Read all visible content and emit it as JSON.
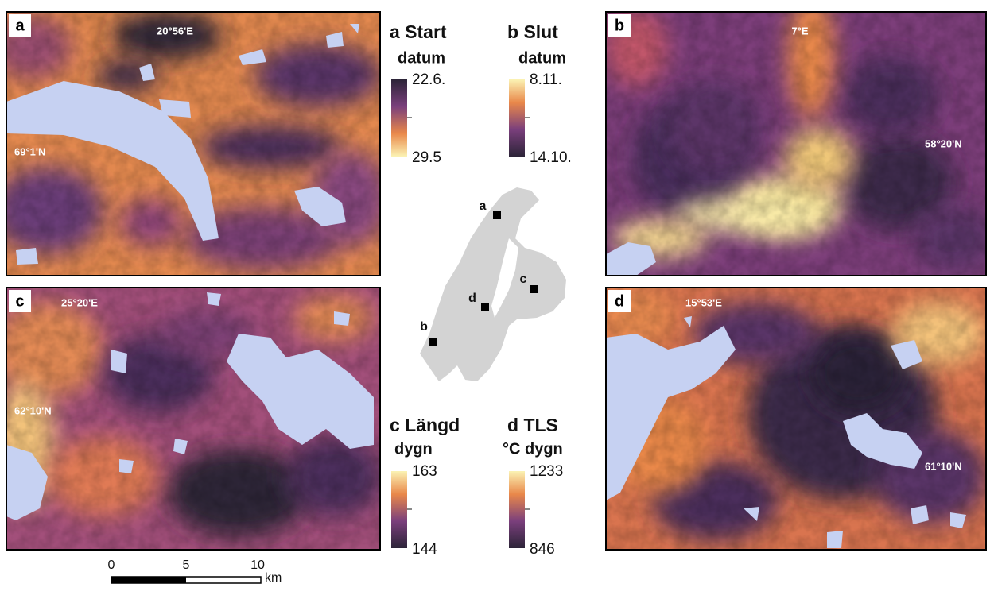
{
  "panels": [
    {
      "letter": "a",
      "lon": "20°56'E",
      "lat": "69°1'N"
    },
    {
      "letter": "b",
      "lon": "7°E",
      "lat": "58°20'N"
    },
    {
      "letter": "c",
      "lon": "25°20'E",
      "lat": "62°10'N"
    },
    {
      "letter": "d",
      "lon": "15°53'E",
      "lat": "61°10'N"
    }
  ],
  "legends": [
    {
      "title": "a Start",
      "unit": "datum",
      "top": "22.6.",
      "bottom": "29.5"
    },
    {
      "title": "b Slut",
      "unit": "datum",
      "top": "8.11.",
      "bottom": "14.10."
    },
    {
      "title": "c Längd",
      "unit": "dygn",
      "top": "163",
      "bottom": "144"
    },
    {
      "title": "d TLS",
      "unit": "°C dygn",
      "top": "1233",
      "bottom": "846"
    }
  ],
  "overview": {
    "markers": [
      "a",
      "b",
      "c",
      "d"
    ]
  },
  "scale_bar": {
    "ticks": [
      "0",
      "5",
      "10"
    ],
    "unit": "km"
  }
}
